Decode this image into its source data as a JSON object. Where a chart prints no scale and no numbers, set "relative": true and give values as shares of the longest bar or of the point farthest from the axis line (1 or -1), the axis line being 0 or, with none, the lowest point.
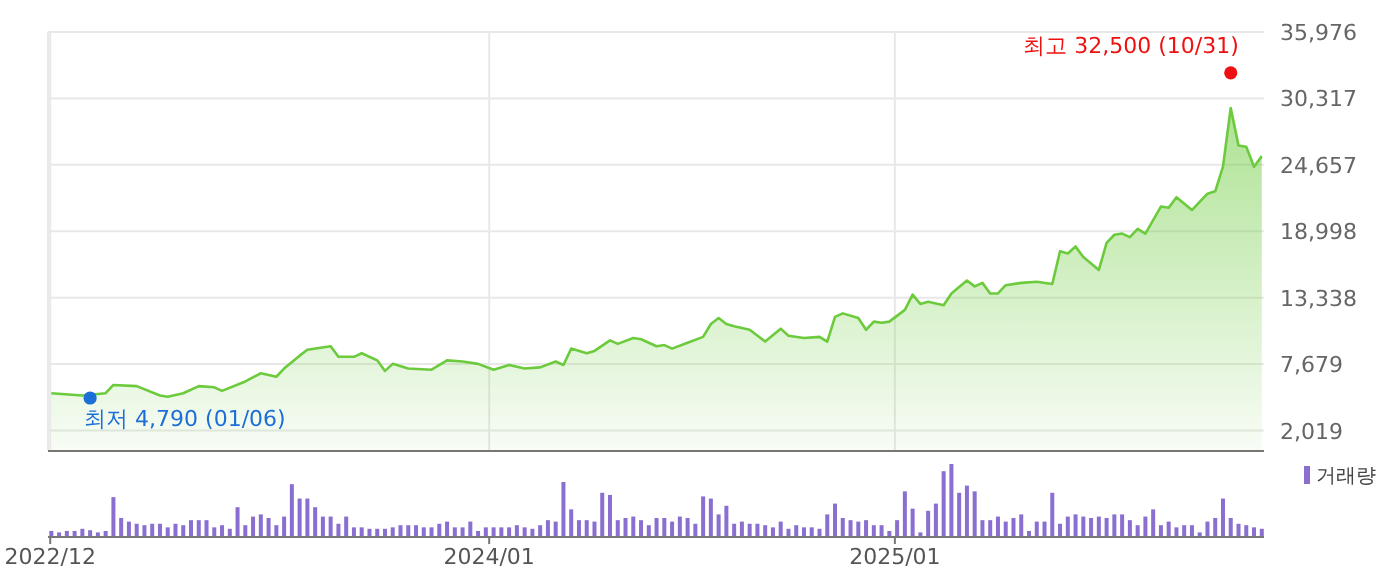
{
  "chart_data": [
    {
      "xlim": [
        "2022-11-29",
        "2025-11-30"
      ],
      "ylim": [
        360,
        35976
      ],
      "xticks": [
        {
          "value": "2022-12",
          "label": null
        },
        {
          "value": "2024-01",
          "label": null
        },
        {
          "value": "2025-01",
          "label": null
        }
      ],
      "yticks": [
        {
          "value": 2019,
          "label": "2,019"
        },
        {
          "value": 7679,
          "label": "7,679"
        },
        {
          "value": 13338,
          "label": "13,338"
        },
        {
          "value": 18998,
          "label": "18,998"
        },
        {
          "value": 24657,
          "label": "24,657"
        },
        {
          "value": 30317,
          "label": "30,317"
        },
        {
          "value": 35976,
          "label": "35,976"
        }
      ],
      "grid": true,
      "tick_labels": "y",
      "type": "area",
      "series": [
        {
          "type": "area",
          "color": "#6ccb3c",
          "x": [
            "2022-12-02",
            "2022-12-30",
            "2023-01-20",
            "2023-01-27",
            "2023-02-17",
            "2023-03-10",
            "2023-03-17",
            "2023-03-31",
            "2023-04-14",
            "2023-04-28",
            "2023-05-05",
            "2023-05-26",
            "2023-06-09",
            "2023-06-23",
            "2023-06-30",
            "2023-07-14",
            "2023-07-21",
            "2023-08-11",
            "2023-08-18",
            "2023-09-01",
            "2023-09-08",
            "2023-09-22",
            "2023-09-29",
            "2023-10-06",
            "2023-10-20",
            "2023-11-10",
            "2023-11-24",
            "2023-12-08",
            "2023-12-22",
            "2024-01-05",
            "2024-01-19",
            "2024-02-02",
            "2024-02-16",
            "2024-03-01",
            "2024-03-08",
            "2024-03-15",
            "2024-03-29",
            "2024-04-05",
            "2024-04-19",
            "2024-04-26",
            "2024-05-10",
            "2024-05-17",
            "2024-05-31",
            "2024-06-07",
            "2024-06-14",
            "2024-06-28",
            "2024-07-12",
            "2024-07-19",
            "2024-07-26",
            "2024-08-02",
            "2024-08-09",
            "2024-08-23",
            "2024-09-06",
            "2024-09-20",
            "2024-09-27",
            "2024-10-11",
            "2024-10-25",
            "2024-11-01",
            "2024-11-08",
            "2024-11-15",
            "2024-11-29",
            "2024-12-06",
            "2024-12-13",
            "2024-12-20",
            "2024-12-27",
            "2025-01-10",
            "2025-01-17",
            "2025-01-24",
            "2025-01-31",
            "2025-02-14",
            "2025-02-21",
            "2025-03-07",
            "2025-03-14",
            "2025-03-21",
            "2025-03-28",
            "2025-04-04",
            "2025-04-11",
            "2025-04-25",
            "2025-05-09",
            "2025-05-23",
            "2025-05-30",
            "2025-06-06",
            "2025-06-13",
            "2025-06-20",
            "2025-07-04",
            "2025-07-11",
            "2025-07-18",
            "2025-07-25",
            "2025-08-01",
            "2025-08-08",
            "2025-08-15",
            "2025-08-29",
            "2025-09-05",
            "2025-09-12",
            "2025-09-26",
            "2025-10-10",
            "2025-10-17",
            "2025-10-24",
            "2025-10-31",
            "2025-11-07",
            "2025-11-14",
            "2025-11-21",
            "2025-11-28"
          ],
          "values": [
            5200,
            5000,
            5200,
            5900,
            5800,
            5000,
            4900,
            5200,
            5800,
            5700,
            5400,
            6200,
            6900,
            6600,
            7300,
            8400,
            8900,
            9200,
            8300,
            8300,
            8600,
            8000,
            7100,
            7700,
            7300,
            7200,
            8000,
            7900,
            7700,
            7200,
            7600,
            7300,
            7400,
            7900,
            7600,
            9000,
            8600,
            8800,
            9700,
            9400,
            9900,
            9800,
            9200,
            9300,
            9000,
            9500,
            10000,
            11100,
            11600,
            11100,
            10900,
            10600,
            9600,
            10700,
            10100,
            9900,
            10000,
            9600,
            11700,
            12000,
            11600,
            10600,
            11300,
            11200,
            11300,
            12300,
            13600,
            12800,
            13000,
            12700,
            13700,
            14800,
            14300,
            14600,
            13700,
            13700,
            14400,
            14600,
            14700,
            14500,
            17300,
            17100,
            17700,
            16800,
            15700,
            18000,
            18700,
            18800,
            18500,
            19200,
            18800,
            21100,
            21000,
            21900,
            20800,
            22200,
            22400,
            24500,
            29500,
            26300,
            26200,
            24500,
            25400
          ]
        },
        {
          "type": "scatter",
          "color": "#ee1111",
          "x": [
            "2025-10-31"
          ],
          "values": [
            32500
          ]
        },
        {
          "type": "scatter",
          "color": "#1b6fd6",
          "x": [
            "2023-01-06"
          ],
          "values": [
            4790
          ]
        }
      ],
      "annotations": [
        {
          "text": "최고 32,500 (10/31)",
          "x": "2025-10-31",
          "y": 32500
        },
        {
          "text": "최저 4,790 (01/06)",
          "x": "2023-01-06",
          "y": 4790
        }
      ]
    },
    {
      "type": "bar",
      "relative": true,
      "legend": "top right",
      "tick_labels": "x",
      "xlim": [
        "2022-11-29",
        "2025-11-30"
      ],
      "xticks": [
        {
          "value": "2022-12",
          "label": "2022/12"
        },
        {
          "value": "2024-01",
          "label": "2024/01"
        },
        {
          "value": "2025-01",
          "label": "2025/01"
        }
      ],
      "x": [
        "2022-12-02",
        "2022-12-09",
        "2022-12-16",
        "2022-12-23",
        "2022-12-30",
        "2023-01-06",
        "2023-01-13",
        "2023-01-20",
        "2023-01-27",
        "2023-02-03",
        "2023-02-10",
        "2023-02-17",
        "2023-02-24",
        "2023-03-03",
        "2023-03-10",
        "2023-03-17",
        "2023-03-24",
        "2023-03-31",
        "2023-04-07",
        "2023-04-14",
        "2023-04-21",
        "2023-04-28",
        "2023-05-05",
        "2023-05-12",
        "2023-05-19",
        "2023-05-26",
        "2023-06-02",
        "2023-06-09",
        "2023-06-16",
        "2023-06-23",
        "2023-06-30",
        "2023-07-07",
        "2023-07-14",
        "2023-07-21",
        "2023-07-28",
        "2023-08-04",
        "2023-08-11",
        "2023-08-18",
        "2023-08-25",
        "2023-09-01",
        "2023-09-08",
        "2023-09-15",
        "2023-09-22",
        "2023-09-29",
        "2023-10-06",
        "2023-10-13",
        "2023-10-20",
        "2023-10-27",
        "2023-11-03",
        "2023-11-10",
        "2023-11-17",
        "2023-11-24",
        "2023-12-01",
        "2023-12-08",
        "2023-12-15",
        "2023-12-22",
        "2023-12-29",
        "2024-01-05",
        "2024-01-12",
        "2024-01-19",
        "2024-01-26",
        "2024-02-02",
        "2024-02-09",
        "2024-02-16",
        "2024-02-23",
        "2024-03-01",
        "2024-03-08",
        "2024-03-15",
        "2024-03-22",
        "2024-03-29",
        "2024-04-05",
        "2024-04-12",
        "2024-04-19",
        "2024-04-26",
        "2024-05-03",
        "2024-05-10",
        "2024-05-17",
        "2024-05-24",
        "2024-05-31",
        "2024-06-07",
        "2024-06-14",
        "2024-06-21",
        "2024-06-28",
        "2024-07-05",
        "2024-07-12",
        "2024-07-19",
        "2024-07-26",
        "2024-08-02",
        "2024-08-09",
        "2024-08-16",
        "2024-08-23",
        "2024-08-30",
        "2024-09-06",
        "2024-09-13",
        "2024-09-20",
        "2024-09-27",
        "2024-10-04",
        "2024-10-11",
        "2024-10-18",
        "2024-10-25",
        "2024-11-01",
        "2024-11-08",
        "2024-11-15",
        "2024-11-22",
        "2024-11-29",
        "2024-12-06",
        "2024-12-13",
        "2024-12-20",
        "2024-12-27",
        "2025-01-03",
        "2025-01-10",
        "2025-01-17",
        "2025-01-24",
        "2025-01-31",
        "2025-02-07",
        "2025-02-14",
        "2025-02-21",
        "2025-02-28",
        "2025-03-07",
        "2025-03-14",
        "2025-03-21",
        "2025-03-28",
        "2025-04-04",
        "2025-04-11",
        "2025-04-18",
        "2025-04-25",
        "2025-05-02",
        "2025-05-09",
        "2025-05-16",
        "2025-05-23",
        "2025-05-30",
        "2025-06-06",
        "2025-06-13",
        "2025-06-20",
        "2025-06-27",
        "2025-07-04",
        "2025-07-11",
        "2025-07-18",
        "2025-07-25",
        "2025-08-01",
        "2025-08-08",
        "2025-08-15",
        "2025-08-22",
        "2025-08-29",
        "2025-09-05",
        "2025-09-12",
        "2025-09-19",
        "2025-09-26",
        "2025-10-03",
        "2025-10-10",
        "2025-10-17",
        "2025-10-24",
        "2025-10-31",
        "2025-11-07",
        "2025-11-14",
        "2025-11-21",
        "2025-11-28"
      ],
      "series": [
        {
          "name": "거래량",
          "color": "#8a6fd1",
          "values": [
            0.07,
            0.05,
            0.07,
            0.07,
            0.1,
            0.08,
            0.05,
            0.07,
            0.54,
            0.25,
            0.2,
            0.17,
            0.15,
            0.17,
            0.17,
            0.12,
            0.17,
            0.15,
            0.22,
            0.22,
            0.22,
            0.12,
            0.15,
            0.1,
            0.4,
            0.15,
            0.27,
            0.3,
            0.25,
            0.15,
            0.27,
            0.72,
            0.52,
            0.52,
            0.4,
            0.27,
            0.27,
            0.17,
            0.27,
            0.12,
            0.12,
            0.1,
            0.1,
            0.1,
            0.12,
            0.15,
            0.15,
            0.15,
            0.12,
            0.12,
            0.17,
            0.2,
            0.12,
            0.12,
            0.2,
            0.07,
            0.12,
            0.12,
            0.12,
            0.12,
            0.15,
            0.12,
            0.1,
            0.15,
            0.22,
            0.2,
            0.75,
            0.37,
            0.22,
            0.22,
            0.2,
            0.6,
            0.57,
            0.22,
            0.25,
            0.27,
            0.22,
            0.15,
            0.25,
            0.25,
            0.2,
            0.27,
            0.25,
            0.17,
            0.55,
            0.52,
            0.3,
            0.42,
            0.17,
            0.2,
            0.17,
            0.17,
            0.15,
            0.12,
            0.2,
            0.1,
            0.15,
            0.12,
            0.12,
            0.1,
            0.3,
            0.45,
            0.25,
            0.22,
            0.2,
            0.22,
            0.15,
            0.15,
            0.07,
            0.22,
            0.62,
            0.38,
            0.05,
            0.35,
            0.45,
            0.9,
            1.0,
            0.6,
            0.7,
            0.62,
            0.22,
            0.22,
            0.27,
            0.2,
            0.25,
            0.3,
            0.07,
            0.2,
            0.2,
            0.6,
            0.17,
            0.27,
            0.3,
            0.27,
            0.25,
            0.27,
            0.25,
            0.3,
            0.3,
            0.22,
            0.15,
            0.27,
            0.37,
            0.15,
            0.2,
            0.12,
            0.15,
            0.15,
            0.05,
            0.2,
            0.25,
            0.52,
            0.25,
            0.17,
            0.15,
            0.12,
            0.1
          ]
        }
      ]
    }
  ]
}
